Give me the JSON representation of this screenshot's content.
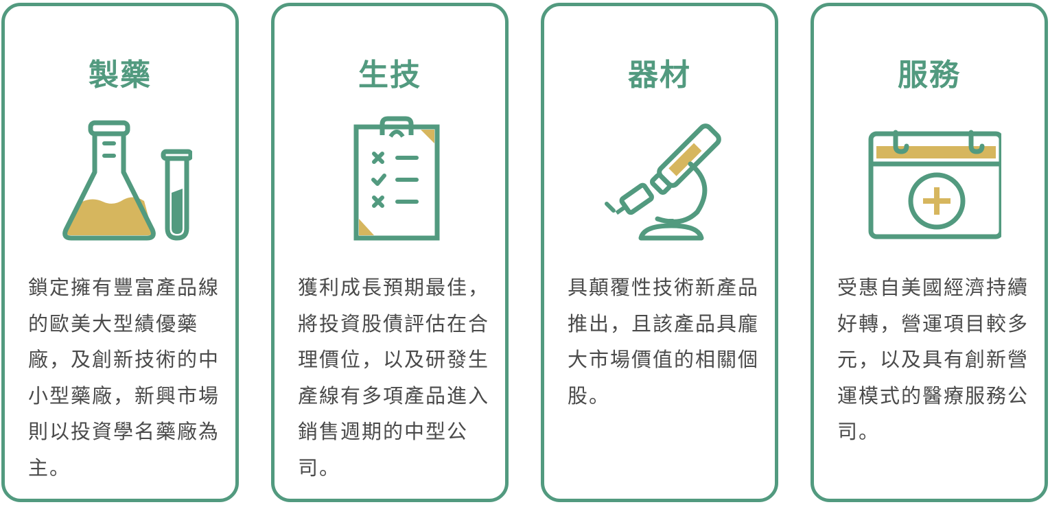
{
  "colors": {
    "green": "#529a7f",
    "gold": "#d6b65e",
    "text": "#4a4a4a"
  },
  "cards": [
    {
      "title": "製藥",
      "icon": "lab-flask-icon",
      "description": "鎖定擁有豐富產品線的歐美大型績優藥廠，及創新技術的中小型藥廠，新興市場則以投資學名藥廠為主。"
    },
    {
      "title": "生技",
      "icon": "clipboard-checklist-icon",
      "description": "獲利成長預期最佳，將投資股債評估在合理價位，以及研發生產線有多項產品進入銷售週期的中型公司。"
    },
    {
      "title": "器材",
      "icon": "microscope-icon",
      "description": "具顛覆性技術新產品推出，且該產品具龐大市場價值的相關個股。"
    },
    {
      "title": "服務",
      "icon": "medical-calendar-icon",
      "description": "受惠自美國經濟持續好轉，營運項目較多元，以及具有創新營運模式的醫療服務公司。"
    }
  ]
}
